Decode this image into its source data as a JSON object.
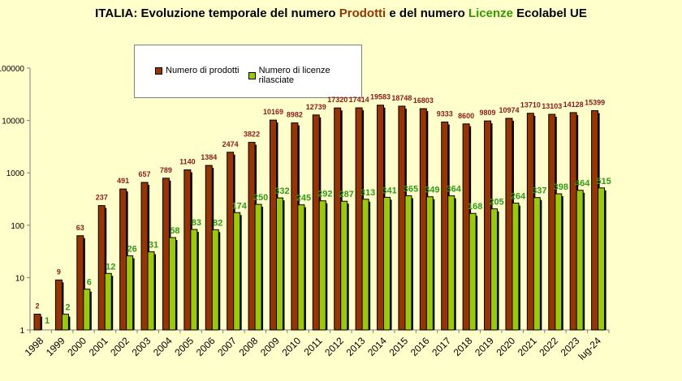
{
  "chart_data": {
    "type": "bar",
    "title": {
      "pre": "ITALIA:  Evoluzione temporale del numero ",
      "word1": "Prodotti",
      "mid": " e del numero ",
      "word2": "Licenze",
      "post": " Ecolabel UE"
    },
    "categories": [
      "1998",
      "1999",
      "2000",
      "2001",
      "2002",
      "2003",
      "2004",
      "2005",
      "2006",
      "2007",
      "2008",
      "2009",
      "2010",
      "2011",
      "2012",
      "2013",
      "2014",
      "2015",
      "2016",
      "2017",
      "2018",
      "2019",
      "2020",
      "2021",
      "2022",
      "2023",
      "lug-24"
    ],
    "series": [
      {
        "name": "Numero di prodotti",
        "color": "#993300",
        "label_color": "#8b1a1a",
        "values": [
          2,
          9,
          63,
          237,
          491,
          657,
          789,
          1140,
          1384,
          2474,
          3822,
          10169,
          8982,
          12739,
          17320,
          17414,
          19583,
          18748,
          16803,
          9333,
          8600,
          9809,
          10974,
          13710,
          13103,
          14128,
          15399
        ]
      },
      {
        "name": "Numero di licenze rilasciate",
        "color": "#99cc00",
        "label_color": "#2e9a1a",
        "values": [
          1,
          2,
          6,
          12,
          26,
          31,
          58,
          83,
          82,
          174,
          250,
          332,
          245,
          292,
          287,
          313,
          341,
          365,
          349,
          364,
          168,
          205,
          264,
          337,
          398,
          464,
          515
        ]
      }
    ],
    "y_scale": "log",
    "ylim": [
      1,
      100000
    ],
    "y_ticks": [
      "1",
      "10",
      "100",
      "1000",
      "10000",
      "100000"
    ],
    "grid": false,
    "legend_position": "top-center"
  }
}
